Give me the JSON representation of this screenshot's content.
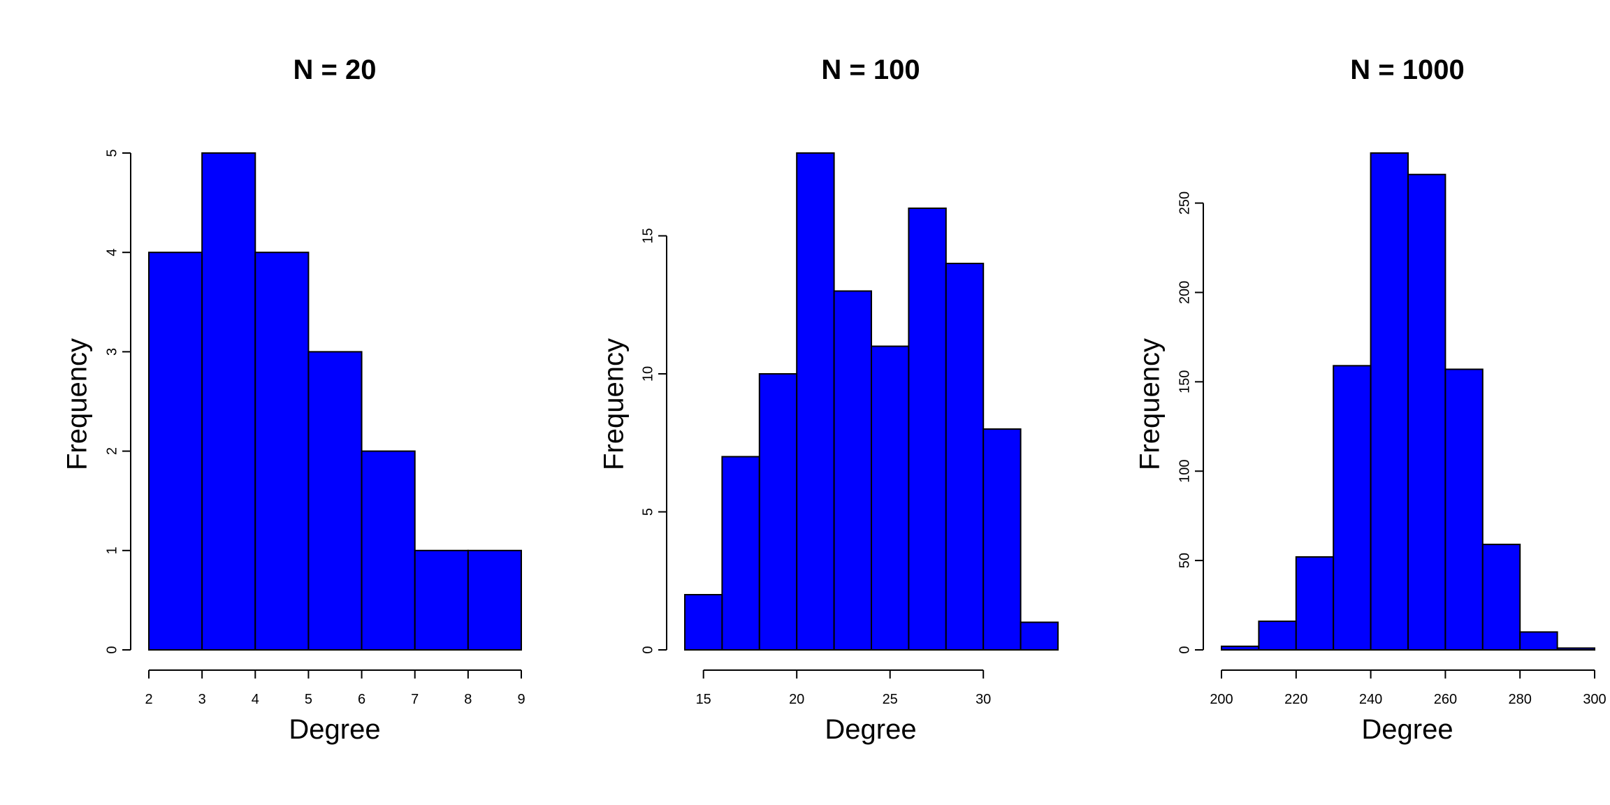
{
  "colors": {
    "bar_fill": "#0000FF",
    "bar_stroke": "#000000",
    "axis": "#000000",
    "background": "#FFFFFF"
  },
  "chart_data": [
    {
      "type": "bar",
      "title": "N =  20",
      "xlabel": "Degree",
      "ylabel": "Frequency",
      "bins": [
        [
          2,
          3
        ],
        [
          3,
          4
        ],
        [
          4,
          5
        ],
        [
          5,
          6
        ],
        [
          6,
          7
        ],
        [
          7,
          8
        ],
        [
          8,
          9
        ]
      ],
      "values": [
        4,
        5,
        4,
        3,
        2,
        1,
        1
      ],
      "xlim": [
        2,
        9
      ],
      "ylim": [
        0,
        5
      ],
      "xticks": [
        "2",
        "3",
        "4",
        "5",
        "6",
        "7",
        "8",
        "9"
      ],
      "yticks": [
        "0",
        "1",
        "2",
        "3",
        "4",
        "5"
      ]
    },
    {
      "type": "bar",
      "title": "N =  100",
      "xlabel": "Degree",
      "ylabel": "Frequency",
      "bins": [
        [
          14,
          16
        ],
        [
          16,
          18
        ],
        [
          18,
          20
        ],
        [
          20,
          22
        ],
        [
          22,
          24
        ],
        [
          24,
          26
        ],
        [
          26,
          28
        ],
        [
          28,
          30
        ],
        [
          30,
          32
        ],
        [
          32,
          34
        ]
      ],
      "values": [
        2,
        7,
        10,
        18,
        13,
        11,
        16,
        14,
        8,
        1
      ],
      "xlim": [
        14,
        34
      ],
      "ylim": [
        0,
        18
      ],
      "xticks": [
        "15",
        "20",
        "25",
        "30"
      ],
      "yticks": [
        "0",
        "5",
        "10",
        "15"
      ]
    },
    {
      "type": "bar",
      "title": "N =  1000",
      "xlabel": "Degree",
      "ylabel": "Frequency",
      "bins": [
        [
          200,
          210
        ],
        [
          210,
          220
        ],
        [
          220,
          230
        ],
        [
          230,
          240
        ],
        [
          240,
          250
        ],
        [
          250,
          260
        ],
        [
          260,
          270
        ],
        [
          270,
          280
        ],
        [
          280,
          290
        ],
        [
          290,
          300
        ]
      ],
      "values": [
        2,
        16,
        52,
        159,
        278,
        266,
        157,
        59,
        10,
        1
      ],
      "xlim": [
        200,
        300
      ],
      "ylim": [
        0,
        278
      ],
      "xticks": [
        "200",
        "220",
        "240",
        "260",
        "280",
        "300"
      ],
      "yticks": [
        "0",
        "50",
        "100",
        "150",
        "200",
        "250"
      ]
    }
  ]
}
